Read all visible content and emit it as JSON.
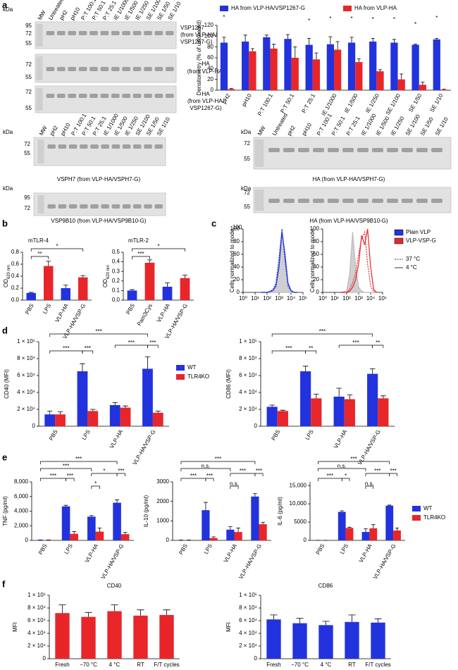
{
  "panel_labels": [
    "a",
    "b",
    "c",
    "d",
    "e",
    "f"
  ],
  "stray_label": "100",
  "blots": [
    {
      "unit": "kDa",
      "lanes": [
        "MW",
        "Untreated",
        "pH2",
        "pH10",
        "P:T 100:1",
        "P:T 50:1",
        "P:T 25:1",
        "IE 1/1000",
        "IE 1/500",
        "IE 1/250",
        "SE 1/100",
        "SE 1/50",
        "SE 1/10"
      ],
      "markers": [
        95,
        72,
        55
      ],
      "caption": [
        "VSP1267",
        "(from VLP-HA/",
        "VSP1267-G)"
      ]
    },
    {
      "markers": [
        72,
        55
      ],
      "caption": [
        "HA",
        "(from VLP-HA)"
      ]
    },
    {
      "markers": [
        72,
        55
      ],
      "caption": [
        "HA",
        "(from VLP-HA/",
        "VSP1267-G)"
      ]
    },
    {
      "unit": "kDa",
      "lanes": [
        "MW",
        "pH2",
        "pH10",
        "P:T 100:1",
        "P:T 50:1",
        "P:T 25:1",
        "IE 1/1000",
        "IE 1/500",
        "IE 1/250",
        "SE 1/100",
        "SE 1/50",
        "SE 1/10"
      ],
      "markers": [
        72,
        55
      ],
      "caption": [
        "VSPH7 (from VLP-HA/VSPH7-G)"
      ]
    },
    {
      "unit": "kDa",
      "markers": [
        95,
        72
      ],
      "caption": [
        "VSP9B10 (from VLP-HA/VSP9B10-G)"
      ]
    },
    {
      "unit": "kDa",
      "lanes": [
        "MW",
        "Untreated",
        "pH2",
        "pH10",
        "P:T 100:1",
        "P:T 50:1",
        "P:T 25:1",
        "IE 1/1000",
        "IE 1/500",
        "IE 1/250",
        "SE 1/100",
        "SE 1/50",
        "SE 1/10"
      ],
      "markers": [
        72,
        55
      ],
      "caption": [
        "HA (from VLP-HA/VSPH7-G)"
      ]
    },
    {
      "unit": "kDa",
      "markers": [
        72,
        55
      ],
      "caption": [
        "HA (from VLP-HA/VSP9B10-G)"
      ]
    }
  ],
  "chart_data": [
    {
      "type": "bar",
      "ylabel": "Densitometry (% of untreated)",
      "legend": "top",
      "categories": [
        "pH2",
        "pH10",
        "P:T 100:1",
        "P:T 50:1",
        "P:T 25:1",
        "IE 1/1000",
        "IE 1/500",
        "IE 1/250",
        "SE 1/100",
        "SE 1/50",
        "SE 1/10"
      ],
      "series": [
        {
          "name": "HA from VLP-HA/VSP1267-G",
          "color": "#2233dd",
          "values": [
            88,
            90,
            98,
            95,
            84,
            85,
            88,
            90,
            88,
            84,
            94
          ],
          "errors": [
            10,
            12,
            4,
            8,
            12,
            14,
            10,
            6,
            6,
            1,
            2
          ]
        },
        {
          "name": "HA from VLP-HA",
          "color": "#e8262a",
          "values": [
            2,
            72,
            77,
            60,
            57,
            75,
            52,
            35,
            20,
            10,
            1
          ],
          "errors": [
            1,
            5,
            8,
            20,
            12,
            15,
            6,
            3,
            10,
            5,
            1
          ]
        }
      ],
      "ylim": [
        0,
        120
      ],
      "yticks": [
        0,
        20,
        40,
        60,
        80,
        100,
        120
      ],
      "significance": [
        "*",
        "*",
        "*",
        "*",
        "*",
        "*",
        "*",
        "*"
      ]
    },
    {
      "type": "bar",
      "title": "mTLR-4",
      "ylabel": "OD",
      "ylabel_sub": "620 nm",
      "categories": [
        "PBS",
        "LPS",
        "VLP-HA",
        "VLP-HA/VSP-G"
      ],
      "values": [
        0.12,
        0.57,
        0.2,
        0.38
      ],
      "errors": [
        0.01,
        0.08,
        0.05,
        0.03
      ],
      "colors": [
        "#2233dd",
        "#e8262a",
        "#2233dd",
        "#e8262a"
      ],
      "ylim": [
        0,
        0.8
      ],
      "yticks": [
        {
          "value": 0,
          "label": "0.0"
        },
        0.2,
        0.4,
        0.6,
        0.8
      ],
      "significance": [
        "**",
        "*"
      ]
    },
    {
      "type": "bar",
      "title": "mTLR-2",
      "ylabel": "OD",
      "ylabel_sub": "620 nm",
      "categories": [
        "PBS",
        "Pam3Cys",
        "VLP-HA",
        "VLP-HA/VSP-G"
      ],
      "values": [
        0.1,
        0.39,
        0.14,
        0.23
      ],
      "errors": [
        0.01,
        0.03,
        0.04,
        0.03
      ],
      "colors": [
        "#2233dd",
        "#e8262a",
        "#2233dd",
        "#e8262a"
      ],
      "ylim": [
        0,
        0.5
      ],
      "yticks": [
        {
          "value": 0,
          "label": "0.0"
        },
        0.1,
        0.2,
        0.3,
        0.4,
        0.5
      ],
      "significance": [
        "***",
        "*"
      ]
    },
    {
      "type": "line",
      "ylabel": "Cells normalized to mode",
      "xscale": "log",
      "x": [
        32,
        100,
        178,
        316,
        562,
        1000,
        1778,
        3162,
        5623,
        10000,
        17783,
        31623
      ],
      "xlim": [
        1,
        100000
      ],
      "xticks": [
        {
          "value": 1,
          "label": "10⁰"
        },
        {
          "value": 10,
          "label": "10¹"
        },
        {
          "value": 100,
          "label": "10²"
        },
        {
          "value": 1000,
          "label": "10³"
        },
        {
          "value": 10000,
          "label": "10⁴"
        },
        {
          "value": 100000,
          "label": "10⁵"
        }
      ],
      "ylim": [
        0,
        100
      ],
      "yticks": [
        0,
        20,
        40,
        60,
        80,
        100
      ],
      "series": [
        {
          "color": "#bbbbbb",
          "fill": true,
          "values": [
            0,
            0,
            1,
            3,
            12,
            45,
            98,
            55,
            12,
            2,
            0,
            0
          ]
        },
        {
          "color": "#2233dd",
          "dash": true,
          "values": [
            0,
            0,
            2,
            5,
            15,
            55,
            100,
            50,
            10,
            2,
            0,
            0
          ]
        },
        {
          "color": "#2233dd",
          "values": [
            0,
            0,
            1,
            3,
            10,
            40,
            95,
            60,
            15,
            3,
            0,
            0
          ]
        }
      ]
    },
    {
      "type": "line",
      "ylabel": "Cells normalized to mode",
      "xscale": "log",
      "x": [
        32,
        100,
        178,
        316,
        562,
        1000,
        1778,
        3162,
        5623,
        10000,
        17783,
        31623
      ],
      "xlim": [
        1,
        100000
      ],
      "xticks": [
        {
          "value": 1,
          "label": "10⁰"
        },
        {
          "value": 10,
          "label": "10¹"
        },
        {
          "value": 100,
          "label": "10²"
        },
        {
          "value": 1000,
          "label": "10³"
        },
        {
          "value": 10000,
          "label": "10⁴"
        },
        {
          "value": 100000,
          "label": "10⁵"
        }
      ],
      "ylim": [
        0,
        100
      ],
      "yticks": [
        0,
        20,
        40,
        60,
        80,
        100
      ],
      "series": [
        {
          "color": "#bbbbbb",
          "fill": true,
          "values": [
            0,
            2,
            30,
            95,
            40,
            8,
            2,
            0,
            0,
            0,
            0,
            0
          ]
        },
        {
          "color": "#e8262a",
          "dash": true,
          "values": [
            0,
            0,
            5,
            15,
            30,
            60,
            85,
            95,
            45,
            10,
            1,
            0
          ]
        },
        {
          "color": "#e8262a",
          "values": [
            0,
            0,
            2,
            8,
            20,
            45,
            90,
            75,
            100,
            40,
            5,
            0
          ]
        }
      ],
      "legend": [
        {
          "name": "Plain VLP",
          "color": "#2233dd"
        },
        {
          "name": "VLP-VSP-G",
          "color": "#e8262a"
        },
        {
          "name": "37 °C",
          "dash": true
        },
        {
          "name": "4 °C",
          "dash": false
        }
      ]
    },
    {
      "type": "bar",
      "ylabel": "CD40 (MFI)",
      "legend": "right",
      "categories": [
        "PBS",
        "LPS",
        "VLP-HA",
        "VLP-HA/VSP-G"
      ],
      "series": [
        {
          "name": "WT",
          "color": "#2233dd",
          "values": [
            14000,
            65000,
            25000,
            68000
          ],
          "errors": [
            4000,
            9000,
            3000,
            14000
          ]
        },
        {
          "name": "TLR4KO",
          "color": "#e8262a",
          "values": [
            14000,
            18000,
            22000,
            16000
          ],
          "errors": [
            3000,
            2000,
            2000,
            2000
          ]
        }
      ],
      "ylim": [
        0,
        100000
      ],
      "yticks": [
        0,
        {
          "value": 20000,
          "label": "2 × 10⁴"
        },
        {
          "value": 40000,
          "label": "4 × 10⁴"
        },
        {
          "value": 60000,
          "label": "6 × 10⁴"
        },
        {
          "value": 80000,
          "label": "8 × 10⁴"
        },
        {
          "value": 100000,
          "label": "1 × 10⁵"
        }
      ],
      "significance": [
        "***",
        "***",
        "***",
        "***",
        "***"
      ]
    },
    {
      "type": "bar",
      "ylabel": "CD86 (MFI)",
      "categories": [
        "PBS",
        "LPS",
        "VLP-HA",
        "VLP-HA/VSP-G"
      ],
      "series": [
        {
          "name": "WT",
          "color": "#2233dd",
          "values": [
            23000,
            65000,
            35000,
            62000
          ],
          "errors": [
            2000,
            6000,
            10000,
            6000
          ]
        },
        {
          "name": "TLR4KO",
          "color": "#e8262a",
          "values": [
            18000,
            33000,
            32000,
            33000
          ],
          "errors": [
            1000,
            5000,
            5000,
            3000
          ]
        }
      ],
      "ylim": [
        0,
        100000
      ],
      "yticks": [
        0,
        {
          "value": 20000,
          "label": "2 × 10⁴"
        },
        {
          "value": 40000,
          "label": "4 × 10⁴"
        },
        {
          "value": 60000,
          "label": "6 × 10⁴"
        },
        {
          "value": 80000,
          "label": "8 × 10⁴"
        },
        {
          "value": 100000,
          "label": "1 × 10⁵"
        }
      ],
      "significance": [
        "***",
        "***",
        "**",
        "***",
        "**"
      ]
    },
    {
      "type": "bar",
      "ylabel": "TNF (pg/ml)",
      "categories": [
        "PBS",
        "LPS",
        "VLP-HA",
        "VLP-HA/VSP-G"
      ],
      "series": [
        {
          "name": "WT",
          "color": "#2233dd",
          "values": [
            50,
            4650,
            3250,
            5150
          ],
          "errors": [
            20,
            150,
            150,
            400
          ]
        },
        {
          "name": "TLR4KO",
          "color": "#e8262a",
          "values": [
            50,
            900,
            1200,
            850
          ],
          "errors": [
            20,
            300,
            500,
            250
          ]
        }
      ],
      "ylim": [
        0,
        8000
      ],
      "yticks": [
        0,
        {
          "value": 2000,
          "label": "2,000"
        },
        {
          "value": 4000,
          "label": "4,000"
        },
        {
          "value": 6000,
          "label": "6,000"
        },
        {
          "value": 8000,
          "label": "8,000"
        }
      ],
      "significance": [
        "***",
        "***",
        "***",
        "***",
        "*",
        "*",
        "***"
      ]
    },
    {
      "type": "bar",
      "ylabel": "IL-10 (pg/ml)",
      "categories": [
        "PBS",
        "LPS",
        "VLP-HA",
        "VLP-HA/VSP-G"
      ],
      "series": [
        {
          "name": "WT",
          "color": "#2233dd",
          "values": [
            10,
            1550,
            550,
            2250
          ],
          "errors": [
            5,
            400,
            150,
            150
          ]
        },
        {
          "name": "TLR4KO",
          "color": "#e8262a",
          "values": [
            10,
            120,
            430,
            830
          ],
          "errors": [
            5,
            60,
            200,
            100
          ]
        }
      ],
      "ylim": [
        0,
        3000
      ],
      "yticks": [
        0,
        1000,
        2000,
        3000
      ],
      "significance": [
        "***",
        "n.s.",
        "***",
        "***",
        "n.s.",
        "***",
        "***"
      ]
    },
    {
      "type": "bar",
      "ylabel": "IL-6 (pg/ml)",
      "legend": "right",
      "categories": [
        "PBS",
        "LPS",
        "VLP-HA",
        "VLP-HA/VSP-G"
      ],
      "series": [
        {
          "name": "WT",
          "color": "#2233dd",
          "values": [
            20,
            7800,
            2300,
            9500
          ],
          "errors": [
            10,
            300,
            900,
            150
          ]
        },
        {
          "name": "TLR4KO",
          "color": "#e8262a",
          "values": [
            20,
            3400,
            3300,
            2700
          ],
          "errors": [
            10,
            200,
            1000,
            700
          ]
        }
      ],
      "ylim": [
        0,
        16000
      ],
      "yticks": [
        0,
        5000,
        {
          "value": 10000,
          "label": "10,000"
        },
        {
          "value": 15000,
          "label": "15,000"
        }
      ],
      "significance": [
        "***",
        "n.s.",
        "***",
        "*",
        "n.s.",
        "***",
        "***"
      ]
    },
    {
      "type": "bar",
      "title": "CD40",
      "ylabel": "MFI",
      "color": "#e8262a",
      "categories": [
        "Fresh",
        "−70 °C",
        "4 °C",
        "RT",
        "F/T cycles"
      ],
      "values": [
        72000,
        66000,
        75000,
        68000,
        69000
      ],
      "errors": [
        13000,
        7000,
        10000,
        9000,
        8000
      ],
      "ylim": [
        0,
        100000
      ],
      "yticks": [
        0,
        {
          "value": 20000,
          "label": "2 × 10⁴"
        },
        {
          "value": 40000,
          "label": "4 × 10⁴"
        },
        {
          "value": 60000,
          "label": "6 × 10⁴"
        },
        {
          "value": 80000,
          "label": "8 × 10⁴"
        },
        {
          "value": 100000,
          "label": "1 × 10⁵"
        }
      ]
    },
    {
      "type": "bar",
      "title": "CD86",
      "ylabel": "MFI",
      "color": "#2233dd",
      "categories": [
        "Fresh",
        "−70 °C",
        "4 °C",
        "RT",
        "F/T cycles"
      ],
      "values": [
        62000,
        56000,
        53000,
        58000,
        57000
      ],
      "errors": [
        7000,
        8000,
        6000,
        11000,
        6000
      ],
      "ylim": [
        0,
        100000
      ],
      "yticks": [
        0,
        {
          "value": 20000,
          "label": "2 × 10⁴"
        },
        {
          "value": 40000,
          "label": "4 × 10⁴"
        },
        {
          "value": 60000,
          "label": "6 × 10⁴"
        },
        {
          "value": 80000,
          "label": "8 × 10⁴"
        },
        {
          "value": 100000,
          "label": "1 × 10⁵"
        }
      ]
    }
  ]
}
